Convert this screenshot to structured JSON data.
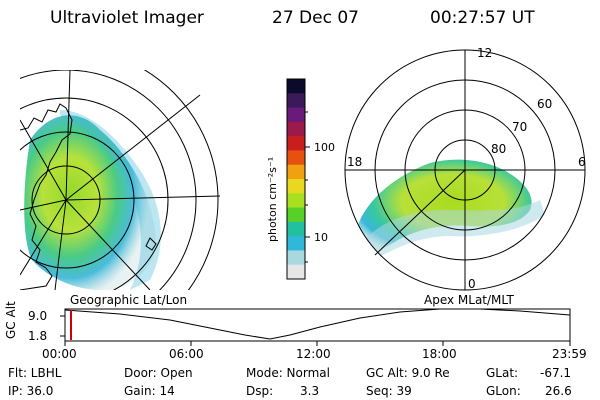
{
  "header": {
    "instrument": "Ultraviolet Imager",
    "date": "27 Dec 07",
    "time": "00:27:57 UT"
  },
  "colorbar": {
    "axis_label": "photon cm⁻²s⁻¹",
    "ticks": [
      "100",
      "10"
    ],
    "colors": [
      "#0a0a2a",
      "#3a1a5a",
      "#6a1a7a",
      "#9a1a4a",
      "#c81e1e",
      "#e85010",
      "#f0a010",
      "#e8d820",
      "#a8e020",
      "#58d028",
      "#20c0a0",
      "#30b8d8",
      "#a8d8e0",
      "#e6e6e6"
    ]
  },
  "left_panel": {
    "caption": "Geographic Lat/Lon"
  },
  "right_panel": {
    "caption": "Apex MLat/MLT",
    "mlt_labels": {
      "top": "12",
      "left": "18",
      "right": "6",
      "bottom": "0"
    },
    "mlat_labels": [
      "60",
      "70",
      "80"
    ]
  },
  "timeline": {
    "axis_label": "GC Alt",
    "y_ticks": [
      "9.0",
      "1.8"
    ],
    "x_ticks": [
      "00:00",
      "06:00",
      "12:00",
      "18:00",
      "23:59"
    ],
    "marker_color": "#d00000"
  },
  "info": {
    "flt": "Flt: LBHL",
    "ip": "IP: 36.0",
    "door": "Door: Open",
    "gain": "Gain: 14",
    "mode": "Mode: Normal",
    "dsp_label": "Dsp:",
    "dsp_value": "3.3",
    "gc_alt": "GC Alt: 9.0 Re",
    "seq": "Seq: 39",
    "glat_label": "GLat:",
    "glat_value": "-67.1",
    "glon_label": "GLon:",
    "glon_value": "26.6"
  }
}
